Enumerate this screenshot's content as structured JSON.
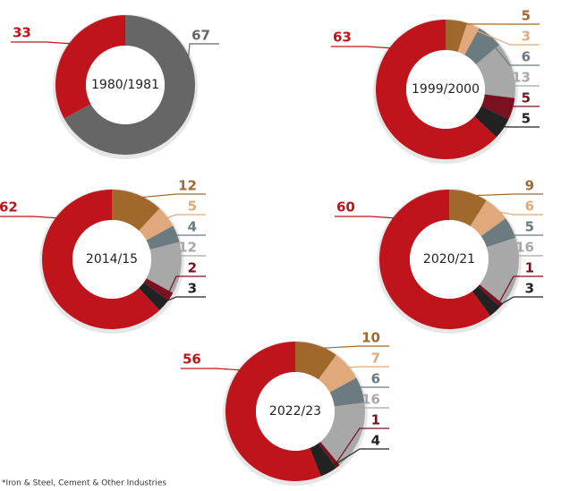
{
  "chart_data": [
    {
      "type": "pie",
      "title": "1980/1981",
      "values": [
        67,
        33
      ],
      "colors": [
        "#666666",
        "#c0141c"
      ],
      "donut": true
    },
    {
      "type": "pie",
      "title": "1999/2000",
      "values": [
        5,
        3,
        6,
        13,
        5,
        5,
        63
      ],
      "colors": [
        "#a0692b",
        "#dfa97c",
        "#6b7b80",
        "#a8a8a8",
        "#7a1020",
        "#222222",
        "#c0141c"
      ],
      "donut": true
    },
    {
      "type": "pie",
      "title": "2014/15",
      "values": [
        12,
        5,
        4,
        12,
        2,
        3,
        62
      ],
      "colors": [
        "#a0692b",
        "#dfa97c",
        "#6b7b80",
        "#a8a8a8",
        "#7a1020",
        "#222222",
        "#c0141c"
      ],
      "donut": true
    },
    {
      "type": "pie",
      "title": "2020/21",
      "values": [
        9,
        6,
        5,
        16,
        1,
        3,
        60
      ],
      "colors": [
        "#a0692b",
        "#dfa97c",
        "#6b7b80",
        "#a8a8a8",
        "#7a1020",
        "#222222",
        "#c0141c"
      ],
      "donut": true
    },
    {
      "type": "pie",
      "title": "2022/23",
      "values": [
        10,
        7,
        6,
        16,
        1,
        4,
        56
      ],
      "colors": [
        "#a0692b",
        "#dfa97c",
        "#6b7b80",
        "#a8a8a8",
        "#7a1020",
        "#222222",
        "#c0141c"
      ],
      "donut": true
    }
  ],
  "footnote": "*Iron & Steel, Cement & Other Industries"
}
